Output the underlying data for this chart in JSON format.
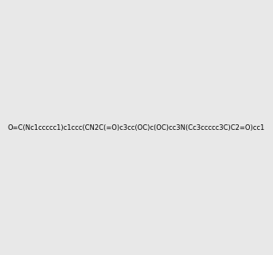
{
  "smiles": "O=C(Nc1ccccc1)c1ccc(CN2C(=O)c3cc(OC)c(OC)cc3N(Cc3ccccc3C)C2=O)cc1",
  "image_size": 300,
  "background_color": "#e8e8e8"
}
